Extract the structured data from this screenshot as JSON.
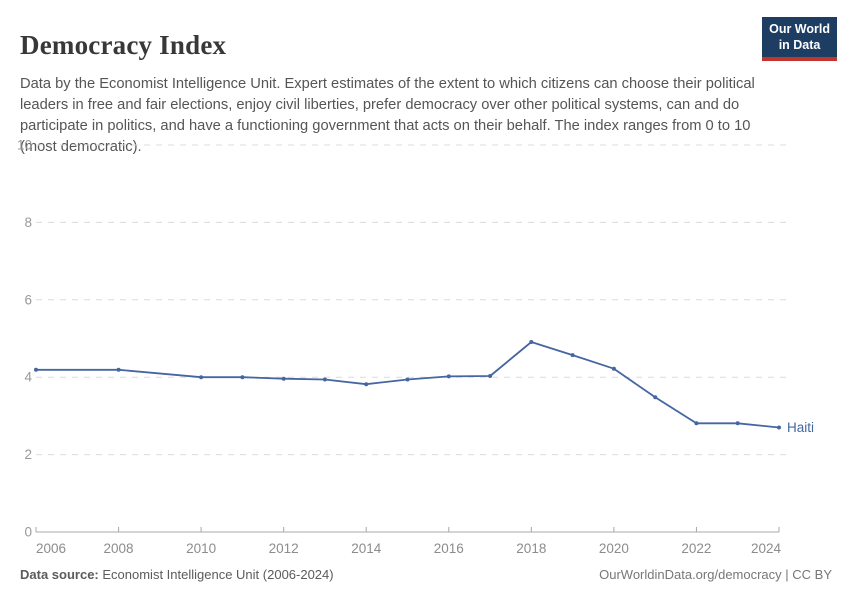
{
  "header": {
    "title": "Democracy Index",
    "subtitle": "Data by the Economist Intelligence Unit. Expert estimates of the extent to which citizens can choose their political leaders in free and fair elections, enjoy civil liberties, prefer democracy over other political systems, can and do participate in politics, and have a functioning government that acts on their behalf. The index ranges from 0 to 10 (most democratic)."
  },
  "logo": {
    "line1": "Our World",
    "line2": "in Data",
    "bg_color": "#1d3d63",
    "bar_color": "#c0362c"
  },
  "chart_data": {
    "type": "line",
    "title": "Democracy Index",
    "x": [
      2006,
      2008,
      2010,
      2011,
      2012,
      2013,
      2014,
      2015,
      2016,
      2017,
      2018,
      2019,
      2020,
      2021,
      2022,
      2023,
      2024
    ],
    "series": [
      {
        "name": "Haiti",
        "color": "#4566a0",
        "values": [
          4.19,
          4.19,
          4.0,
          4.0,
          3.96,
          3.94,
          3.82,
          3.94,
          4.02,
          4.03,
          4.91,
          4.57,
          4.22,
          3.48,
          2.81,
          2.81,
          2.7
        ]
      }
    ],
    "xlabel": "",
    "ylabel": "",
    "ylim": [
      0,
      10
    ],
    "yticks": [
      0,
      2,
      4,
      6,
      8,
      10
    ],
    "xticks": [
      2006,
      2008,
      2010,
      2012,
      2014,
      2016,
      2018,
      2020,
      2022,
      2024
    ],
    "grid": true,
    "gridline_color": "#dcdcdc",
    "axis_color": "#a8a8a8",
    "tick_label_color": "#8c8c8c",
    "legend_position": "end-of-line"
  },
  "footer": {
    "source_label": "Data source:",
    "source_text": " Economist Intelligence Unit (2006-2024)",
    "right_text": "OurWorldinData.org/democracy | CC BY"
  }
}
